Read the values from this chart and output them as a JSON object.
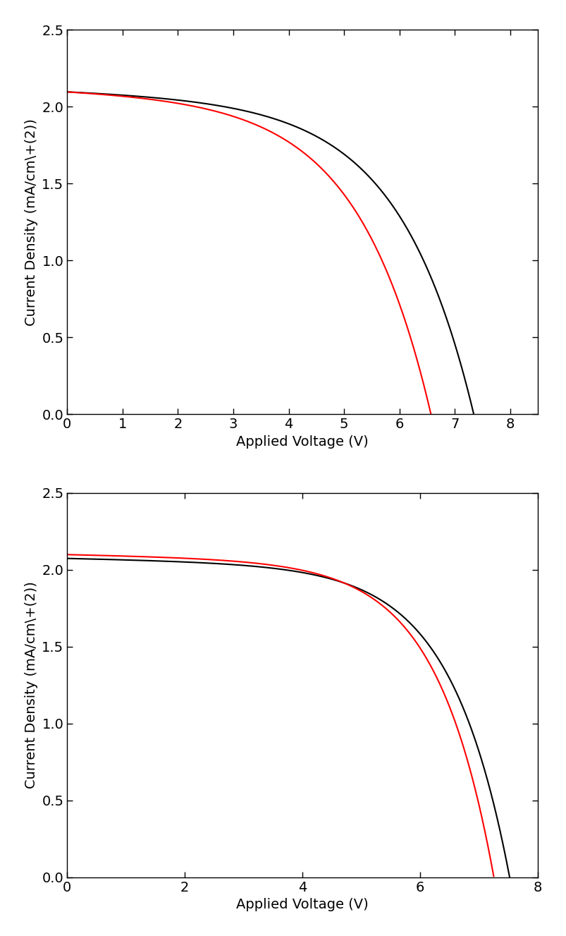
{
  "top_plot": {
    "xlabel": "Applied Voltage (V)",
    "ylabel": "Current Density (mA/cm\\+(2))",
    "xlim": [
      0,
      8.5
    ],
    "ylim": [
      0,
      2.5
    ],
    "xticks": [
      0,
      1,
      2,
      3,
      4,
      5,
      6,
      7,
      8
    ],
    "yticks": [
      0.0,
      0.5,
      1.0,
      1.5,
      2.0,
      2.5
    ],
    "black_curve": {
      "Jsc": 2.105,
      "Voc": 7.4,
      "n": 5.5,
      "Rs": 0.012
    },
    "red_curve": {
      "Jsc": 2.11,
      "Voc": 6.62,
      "n": 5.0,
      "Rs": 0.012
    }
  },
  "bottom_plot": {
    "xlabel": "Applied Voltage (V)",
    "ylabel": "Current Density (mA/cm\\+(2))",
    "xlim": [
      0,
      8.0
    ],
    "ylim": [
      0,
      2.5
    ],
    "xticks": [
      0,
      2,
      4,
      6,
      8
    ],
    "yticks": [
      0.0,
      0.5,
      1.0,
      1.5,
      2.0,
      2.5
    ],
    "black_curve": {
      "Jsc": 2.075,
      "Voc": 7.55,
      "n": 7.5,
      "Rs": 0.008
    },
    "red_curve": {
      "Jsc": 2.1,
      "Voc": 7.28,
      "n": 7.5,
      "Rs": 0.008
    }
  },
  "line_width": 1.5,
  "black_color": "#000000",
  "red_color": "#ff0000",
  "background_color": "#ffffff",
  "tick_fontsize": 14,
  "label_fontsize": 14
}
